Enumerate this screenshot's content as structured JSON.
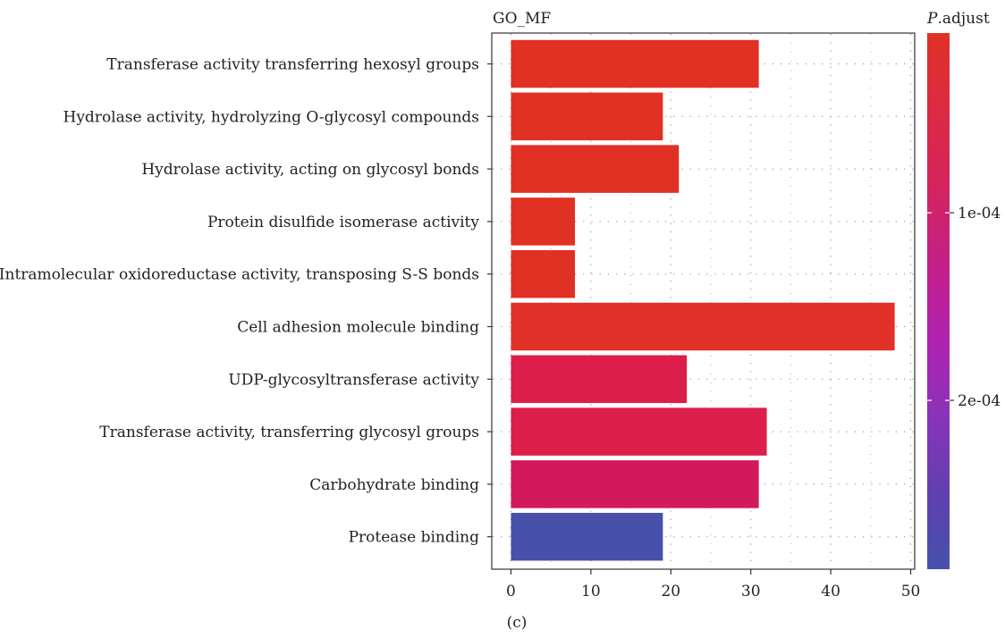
{
  "chart_data": {
    "type": "bar",
    "orientation": "horizontal",
    "title": "GO_MF",
    "categories": [
      "Transferase activity transferring hexosyl groups",
      "Hydrolase activity, hydrolyzing O-glycosyl compounds",
      "Hydrolase activity, acting on glycosyl bonds",
      "Protein disulfide isomerase activity",
      "Intramolecular oxidoreductase activity, transposing S-S bonds",
      "Cell adhesion molecule binding",
      "UDP-glycosyltransferase activity",
      "Transferase activity, transferring glycosyl groups",
      "Carbohydrate binding",
      "Protease binding"
    ],
    "values": [
      31,
      19,
      21,
      8,
      8,
      48,
      22,
      32,
      31,
      19
    ],
    "bar_colors": [
      "#e03124",
      "#e03124",
      "#e03124",
      "#e03124",
      "#e03124",
      "#e13129",
      "#dc1f4a",
      "#dc1f4a",
      "#d4185c",
      "#4750ab"
    ],
    "xlim": [
      -2.4,
      50.5
    ],
    "xticks": [
      0,
      10,
      20,
      30,
      40,
      50
    ],
    "grid": true,
    "legend": {
      "title_italic": "P",
      "title_rest": ".adjust",
      "ticks": [
        "1e-04",
        "2e-04"
      ],
      "tick_values": [
        0.0001,
        0.0002
      ],
      "range": [
        4.2e-06,
        0.00029
      ],
      "colors_top_to_bottom": [
        "#e03124",
        "#dc2a44",
        "#d4245c",
        "#c42088",
        "#b021b0",
        "#8a33b8",
        "#6040b0",
        "#4551ab"
      ],
      "placement": "right"
    },
    "panel_label": "(c)"
  }
}
